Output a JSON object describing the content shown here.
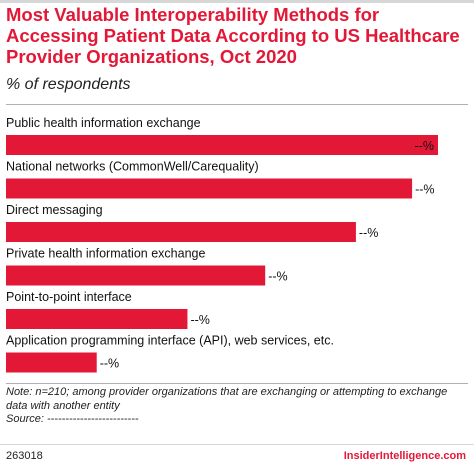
{
  "title": "Most Valuable Interoperability Methods for Accessing Patient Data According to US Healthcare Provider Organizations, Oct 2020",
  "subtitle": "% of respondents",
  "colors": {
    "bar": "#e31837",
    "title": "#e31837"
  },
  "chart_data": {
    "type": "bar",
    "orientation": "horizontal",
    "categories": [
      "Public health information exchange",
      "National networks (CommonWell/Carequality)",
      "Direct messaging",
      "Private health information exchange",
      "Point-to-point interface",
      "Application programming interface (API), web services, etc."
    ],
    "values": [
      100,
      94,
      81,
      60,
      42,
      21
    ],
    "value_labels": [
      "--%",
      "--%",
      "--%",
      "--%",
      "--%",
      "--%"
    ],
    "value_unit": "relative bar length (values not printed)"
  },
  "note": "Note: n=210; among provider organizations that are exchanging or attempting to exchange data with another entity",
  "source": "Source: -------------------------",
  "footer": {
    "id": "263018",
    "brand": "InsiderIntelligence.com"
  }
}
